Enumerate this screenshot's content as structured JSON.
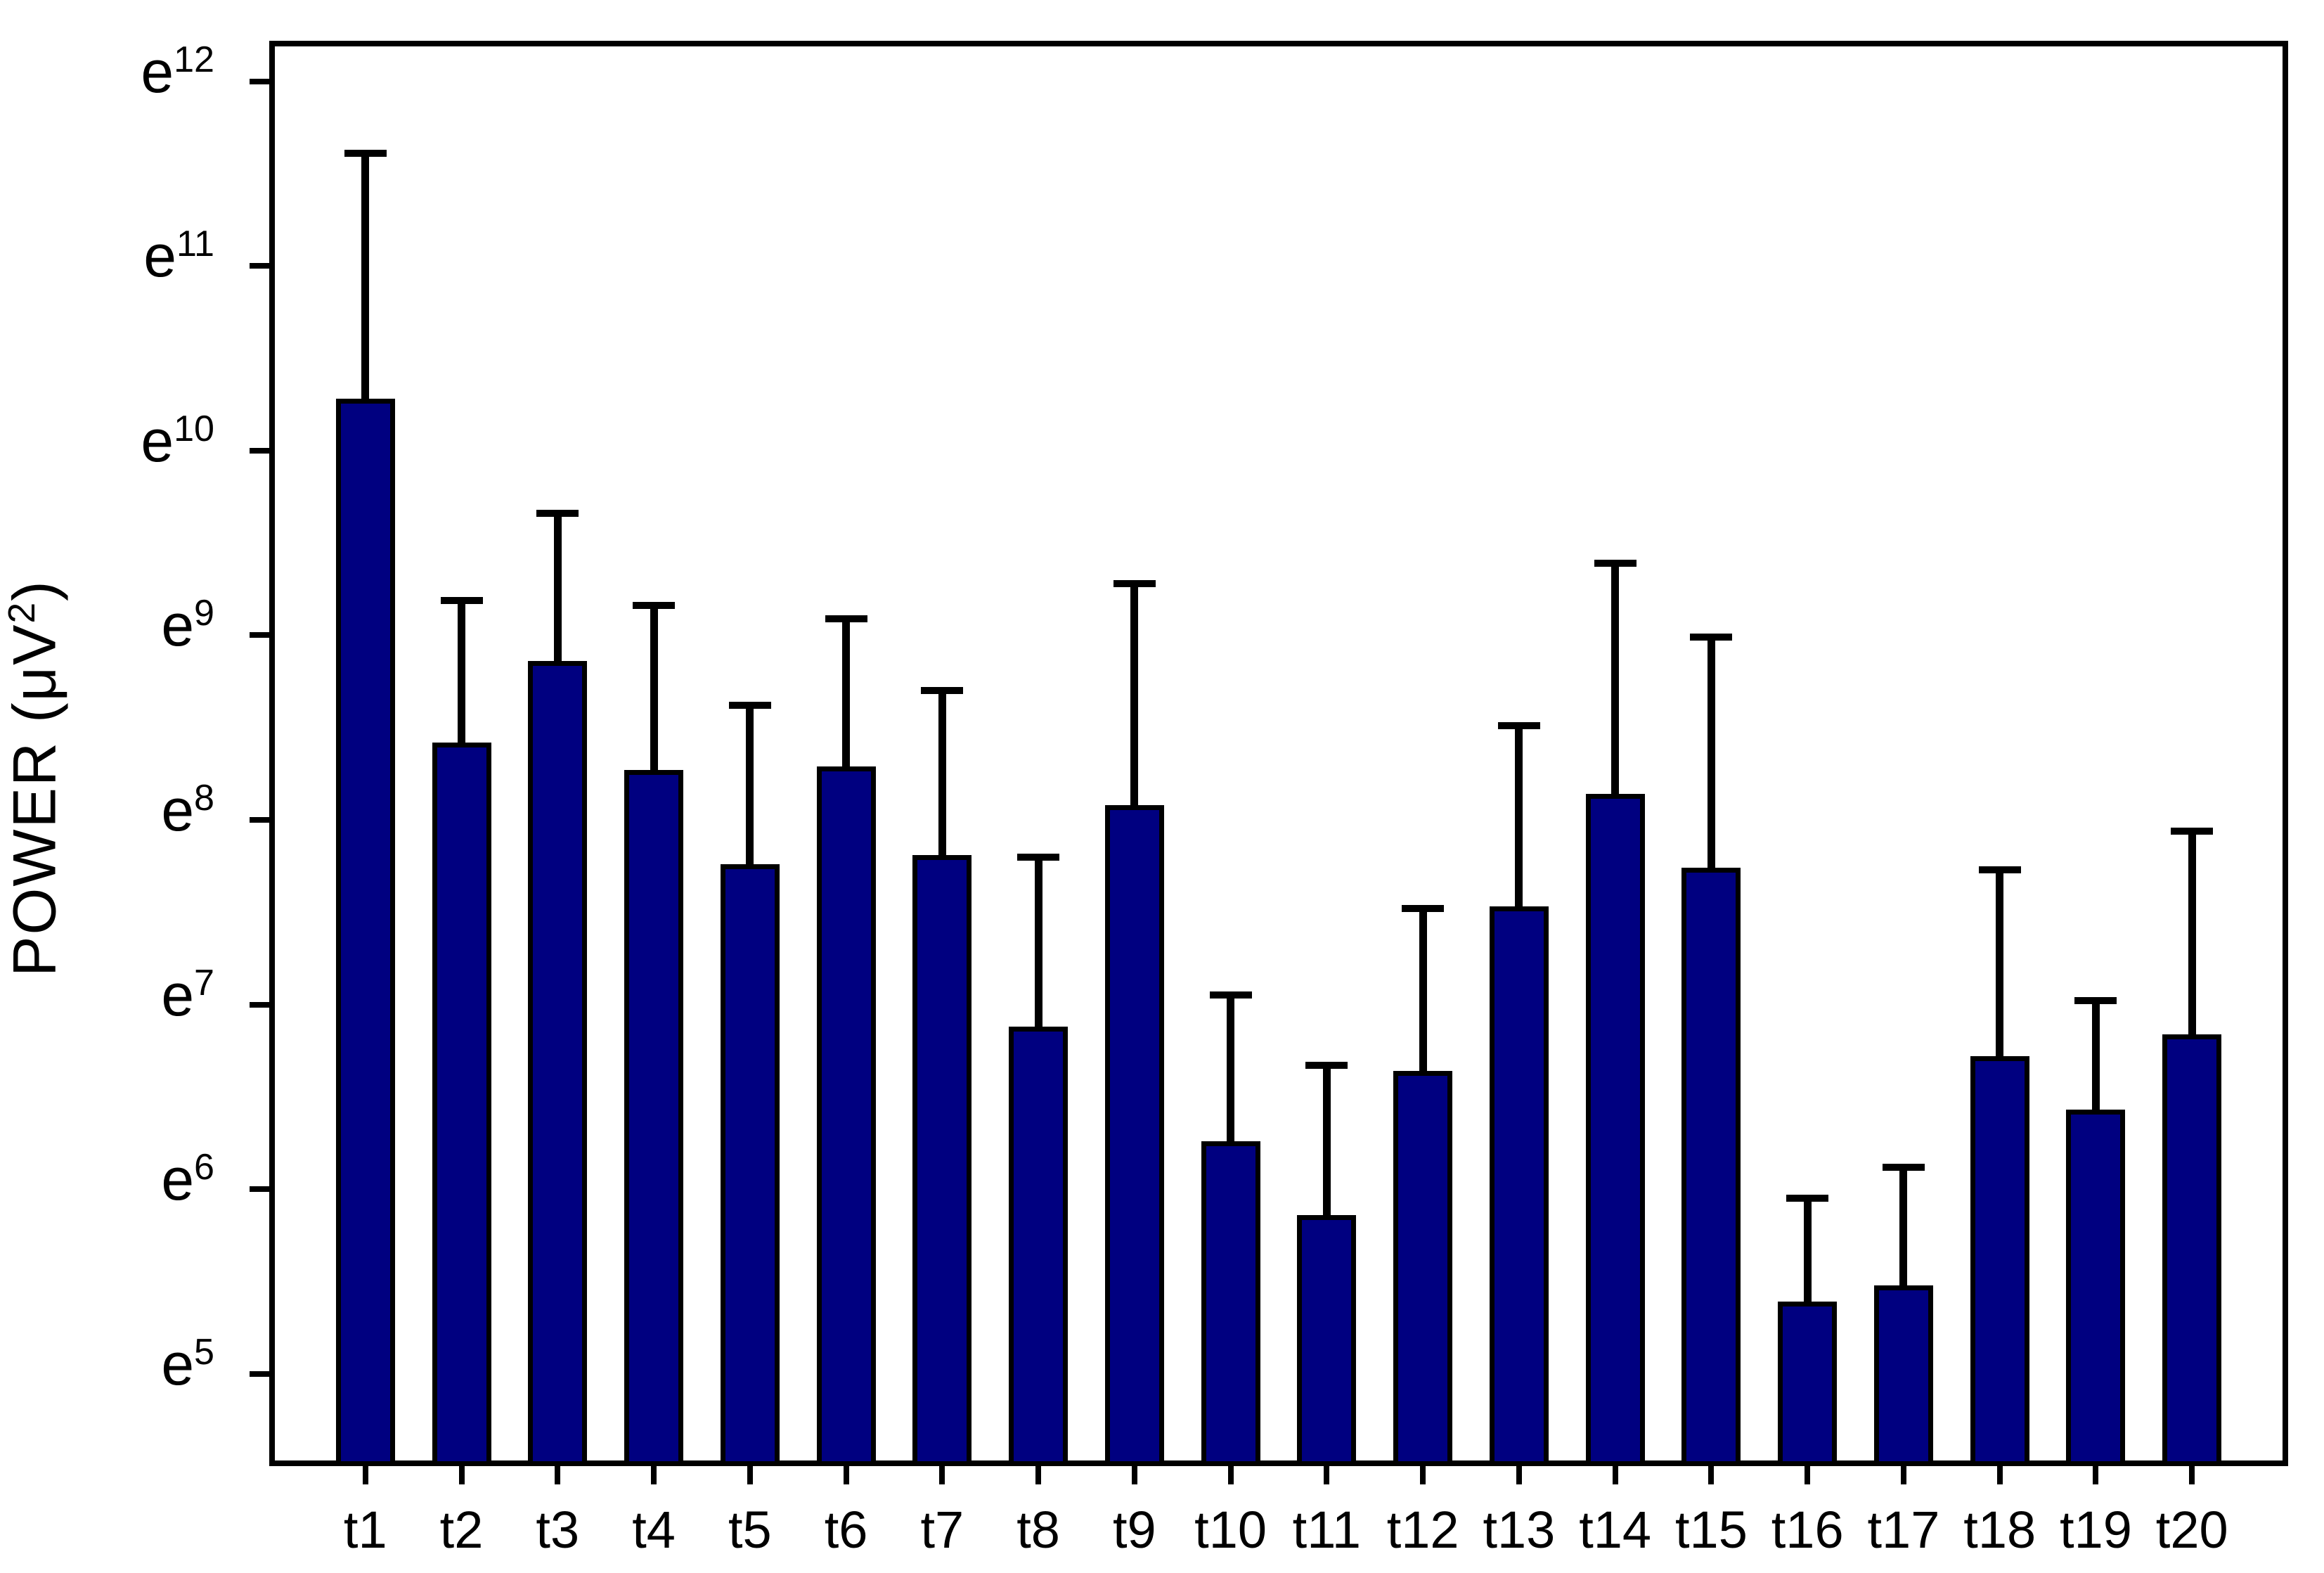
{
  "figure": {
    "background_color": "#ffffff"
  },
  "chart_data": {
    "type": "bar",
    "title": "",
    "xlabel": "",
    "ylabel": "POWER (μV²)",
    "y_axis": {
      "label": "POWER",
      "unit_prefix": "(μV",
      "unit_exponent": "2",
      "unit_suffix": ")",
      "tick_base": "e",
      "tick_exponents": [
        12,
        11,
        10,
        9,
        8,
        7,
        6,
        5
      ],
      "scale": "natural-log (values are exponents of e)",
      "ylim_ln": [
        4.5,
        12.22
      ]
    },
    "grid": false,
    "legend": null,
    "categories": [
      "t1",
      "t2",
      "t3",
      "t4",
      "t5",
      "t6",
      "t7",
      "t8",
      "t9",
      "t10",
      "t11",
      "t12",
      "t13",
      "t14",
      "t15",
      "t16",
      "t17",
      "t18",
      "t19",
      "t20"
    ],
    "values_ln": [
      10.28,
      8.42,
      8.86,
      8.27,
      7.76,
      8.29,
      7.81,
      6.88,
      8.08,
      6.26,
      5.86,
      6.64,
      7.53,
      8.14,
      7.74,
      5.39,
      5.48,
      6.72,
      6.43,
      6.84
    ],
    "error_top_ln": [
      11.61,
      9.19,
      9.66,
      9.16,
      8.62,
      9.09,
      8.7,
      7.8,
      9.28,
      7.05,
      6.67,
      7.52,
      8.51,
      9.39,
      8.99,
      5.95,
      6.12,
      7.73,
      7.02,
      7.94
    ],
    "bar_color": "#000080",
    "bar_border_color": "#000000",
    "error_bar_color": "#000000"
  }
}
